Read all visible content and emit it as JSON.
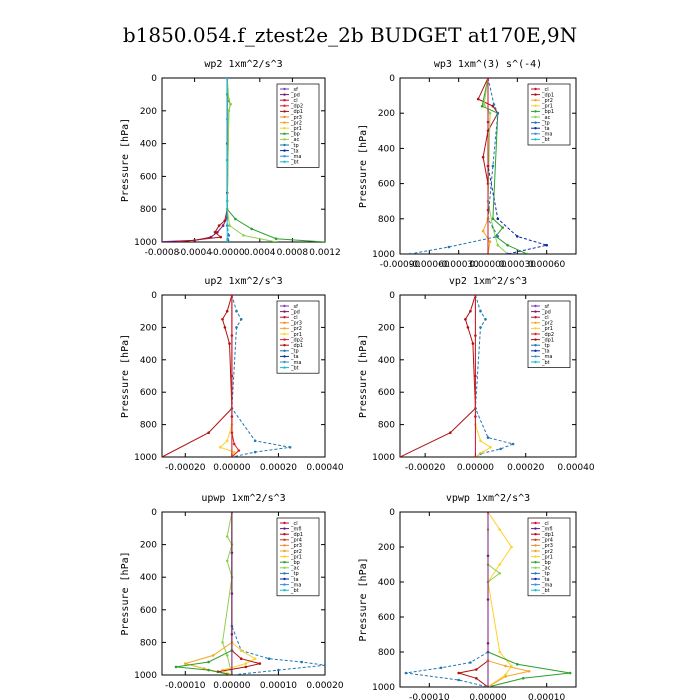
{
  "title": "b1850.054.f_ztest2e_2b  BUDGET at170E,9N",
  "colors": {
    "_sf": "#7b3fbf",
    "_pd": "#7a1a7a",
    "_cl": "#c8102e",
    "_dp2": "#e02020",
    "_dp1": "#b01010",
    "_pr3": "#f28c28",
    "_pr2": "#f5a623",
    "_pr1": "#ffd02a",
    "_pr4": "#d43a1a",
    "_mfl": "#5a1c8c",
    "_bp": "#2ca02c",
    "_bp1": "#2ca02c",
    "_ac": "#8fd14f",
    "_tp": "#1f77b4",
    "_ta": "#0a2aa8",
    "_ma": "#3a8fd8",
    "_bt": "#17becf"
  },
  "chart_data": [
    {
      "type": "line",
      "title": "wp2  1xm^2/s^3",
      "ylabel": "Pressure [hPa]",
      "xlim": [
        -0.0008,
        0.0012
      ],
      "ylim": [
        1000,
        0
      ],
      "xticks": [
        "-0.0008",
        "-0.0004",
        "-0.0000",
        "0.0004",
        "0.0008",
        "0.0012"
      ],
      "xtick_values": [
        -0.0008,
        -0.0004,
        0.0,
        0.0004,
        0.0008,
        0.0012
      ],
      "yticks": [
        "0",
        "200",
        "400",
        "600",
        "800",
        "1000"
      ],
      "legend": [
        "_sf",
        "_pd",
        "_cl",
        "_dp2",
        "_dp1",
        "_pr3",
        "_pr2",
        "_pr1",
        "_bp",
        "_ac",
        "_tp",
        "_ta",
        "_ma",
        "_bt"
      ],
      "series": [
        {
          "name": "_pd",
          "x": [
            0,
            0,
            0,
            0,
            -5e-05,
            -0.00012,
            -0.0002,
            -0.0004,
            -0.0009
          ],
          "y": [
            0,
            400,
            700,
            850,
            900,
            940,
            970,
            990,
            1000
          ]
        },
        {
          "name": "_dp1",
          "x": [
            0,
            0,
            0,
            -3e-05,
            -0.0001,
            -0.00015,
            -8e-05,
            -0.0006
          ],
          "y": [
            0,
            500,
            800,
            870,
            900,
            940,
            970,
            1000
          ]
        },
        {
          "name": "_bp",
          "x": [
            0,
            0,
            2e-05,
            4e-05,
            2e-05,
            0,
            0.0001,
            0.0003,
            0.0006,
            0.0012
          ],
          "y": [
            0,
            100,
            140,
            160,
            200,
            800,
            860,
            920,
            980,
            1000
          ]
        },
        {
          "name": "_ac",
          "x": [
            0,
            2e-05,
            4e-05,
            2e-05,
            0,
            3e-05,
            0.0002,
            0.0006
          ],
          "y": [
            0,
            130,
            160,
            200,
            800,
            900,
            960,
            1000
          ]
        },
        {
          "name": "_tp",
          "x": [
            0,
            0,
            0,
            2e-05,
            1e-05,
            0
          ],
          "y": [
            0,
            500,
            900,
            960,
            990,
            1000
          ]
        },
        {
          "name": "_bt",
          "x": [
            0,
            0,
            0,
            0,
            0
          ],
          "y": [
            0,
            250,
            500,
            750,
            1000
          ]
        }
      ]
    },
    {
      "type": "line",
      "title": "wp3  1xm^(3) s^(-4)",
      "ylabel": "Pressure [hPa]",
      "xlim": [
        -0.0009,
        0.0009
      ],
      "ylim": [
        1000,
        0
      ],
      "xticks": [
        "-0.00090",
        "-0.00060",
        "-0.00030",
        "0.00000",
        "0.00030",
        "0.00060"
      ],
      "xtick_values": [
        -0.0009,
        -0.0006,
        -0.0003,
        0.0,
        0.0003,
        0.0006
      ],
      "yticks": [
        "0",
        "200",
        "400",
        "600",
        "800",
        "1000"
      ],
      "legend": [
        "_cl",
        "_dp1",
        "_pr2",
        "_pr1",
        "_bp1",
        "_ac",
        "_tp",
        "_ta",
        "_ma",
        "_bt"
      ],
      "series": [
        {
          "name": "_dp1",
          "x": [
            0,
            -0.0001,
            5e-05,
            0.0001,
            0,
            -5e-05,
            0,
            0
          ],
          "y": [
            0,
            120,
            160,
            200,
            300,
            450,
            600,
            1000
          ]
        },
        {
          "name": "_bp1",
          "x": [
            0,
            -6e-05,
            0.0001,
            5e-05,
            0.00015,
            8e-05,
            0.0002,
            0.0004
          ],
          "y": [
            0,
            160,
            200,
            800,
            850,
            900,
            950,
            1000
          ]
        },
        {
          "name": "_ac",
          "x": [
            0,
            -4e-05,
            2e-05,
            0,
            5e-05,
            0.0001,
            0.0002
          ],
          "y": [
            0,
            150,
            200,
            700,
            850,
            950,
            1000
          ]
        },
        {
          "name": "_tp",
          "x": [
            0,
            6e-05,
            0.0001,
            5e-05,
            0,
            0.0001,
            -0.0004,
            -0.0008
          ],
          "y": [
            0,
            150,
            200,
            500,
            800,
            900,
            960,
            1000
          ]
        },
        {
          "name": "_ta",
          "x": [
            0,
            0,
            0.0001,
            0.0003,
            0.0006,
            0.0002
          ],
          "y": [
            0,
            500,
            800,
            900,
            950,
            1000
          ]
        },
        {
          "name": "_pr2",
          "x": [
            0,
            0,
            -5e-05,
            2e-05,
            0
          ],
          "y": [
            0,
            800,
            870,
            930,
            1000
          ]
        },
        {
          "name": "_cl",
          "x": [
            0,
            0,
            0,
            0,
            0
          ],
          "y": [
            0,
            250,
            500,
            750,
            1000
          ]
        }
      ]
    },
    {
      "type": "line",
      "title": "up2  1xm^2/s^3",
      "ylabel": "Pressure [hPa]",
      "xlim": [
        -0.0003,
        0.0004
      ],
      "ylim": [
        1000,
        0
      ],
      "xticks": [
        "-0.00020",
        "0.00000",
        "0.00020",
        "0.00040"
      ],
      "xtick_values": [
        -0.0002,
        0.0,
        0.0002,
        0.0004
      ],
      "yticks": [
        "0",
        "200",
        "400",
        "600",
        "800",
        "1000"
      ],
      "legend": [
        "_sf",
        "_pd",
        "_cl",
        "_pr3",
        "_pr2",
        "_pr1",
        "_dp2",
        "_dp1",
        "_tp",
        "_ta",
        "_ma",
        "_bt"
      ],
      "series": [
        {
          "name": "_dp1",
          "x": [
            0,
            -2e-05,
            -4e-05,
            -3e-05,
            -1e-05,
            0,
            -0.0001,
            -0.0003
          ],
          "y": [
            0,
            100,
            150,
            200,
            300,
            700,
            850,
            1000
          ]
        },
        {
          "name": "_tp",
          "x": [
            0,
            2e-05,
            4e-05,
            2e-05,
            0,
            0.0001,
            0.00025,
            0.0001,
            0
          ],
          "y": [
            0,
            100,
            150,
            200,
            700,
            900,
            940,
            970,
            1000
          ]
        },
        {
          "name": "_pr1",
          "x": [
            0,
            0,
            -2e-05,
            -5e-05,
            1e-05,
            0
          ],
          "y": [
            0,
            800,
            900,
            940,
            970,
            1000
          ]
        },
        {
          "name": "_dp2",
          "x": [
            0,
            0,
            1e-05,
            3e-05,
            0
          ],
          "y": [
            0,
            850,
            920,
            960,
            1000
          ]
        },
        {
          "name": "_cl",
          "x": [
            0,
            0,
            0,
            0,
            0
          ],
          "y": [
            0,
            250,
            500,
            750,
            1000
          ]
        }
      ]
    },
    {
      "type": "line",
      "title": "vp2  1xm^2/s^3",
      "ylabel": "Pressure [hPa]",
      "xlim": [
        -0.0003,
        0.0004
      ],
      "ylim": [
        1000,
        0
      ],
      "xticks": [
        "-0.00020",
        "0.00000",
        "0.00020",
        "0.00040"
      ],
      "xtick_values": [
        -0.0002,
        0.0,
        0.0002,
        0.0004
      ],
      "yticks": [
        "0",
        "200",
        "400",
        "600",
        "800",
        "1000"
      ],
      "legend": [
        "_sf",
        "_pd",
        "_cl",
        "_pr2",
        "_pr1",
        "_dp2",
        "_dp1",
        "_tp",
        "_ta",
        "_ma",
        "_bt"
      ],
      "series": [
        {
          "name": "_dp1",
          "x": [
            0,
            -2e-05,
            -4e-05,
            -3e-05,
            -1e-05,
            0,
            -0.0001,
            -0.0003
          ],
          "y": [
            0,
            100,
            150,
            200,
            300,
            700,
            850,
            1000
          ]
        },
        {
          "name": "_tp",
          "x": [
            0,
            2e-05,
            4e-05,
            2e-05,
            0,
            5e-05,
            0.00015,
            0.0001,
            2e-05,
            0
          ],
          "y": [
            0,
            100,
            150,
            200,
            700,
            880,
            920,
            950,
            980,
            1000
          ]
        },
        {
          "name": "_pr1",
          "x": [
            0,
            0,
            2e-05,
            6e-05,
            3e-05,
            0
          ],
          "y": [
            0,
            800,
            900,
            940,
            970,
            1000
          ]
        },
        {
          "name": "_cl",
          "x": [
            0,
            0,
            0,
            0,
            0
          ],
          "y": [
            0,
            250,
            500,
            750,
            1000
          ]
        }
      ]
    },
    {
      "type": "line",
      "title": "upwp  1xm^2/s^3",
      "ylabel": "Pressure [hPa]",
      "xlim": [
        -0.00015,
        0.0002
      ],
      "ylim": [
        1000,
        0
      ],
      "xticks": [
        "-0.00010",
        "0.00000",
        "0.00010",
        "0.00020"
      ],
      "xtick_values": [
        -0.0001,
        0.0,
        0.0001,
        0.0002
      ],
      "yticks": [
        "0",
        "200",
        "400",
        "600",
        "800",
        "1000"
      ],
      "legend": [
        "_cl",
        "_mfl",
        "_dp1",
        "_pr4",
        "_pr3",
        "_pr2",
        "_pr1",
        "_bp",
        "_ac",
        "_tp",
        "_ta",
        "_ma",
        "_bt"
      ],
      "series": [
        {
          "name": "_ac",
          "x": [
            0,
            -1e-05,
            0,
            -1e-05,
            0,
            -2e-05,
            -1e-05,
            0
          ],
          "y": [
            0,
            150,
            200,
            300,
            400,
            800,
            880,
            1000
          ]
        },
        {
          "name": "_tp",
          "x": [
            0,
            0,
            2e-05,
            8e-05,
            0.00015,
            0.0002,
            0.0001,
            0
          ],
          "y": [
            0,
            700,
            850,
            900,
            920,
            940,
            970,
            1000
          ]
        },
        {
          "name": "_pr2",
          "x": [
            0,
            0,
            -4e-05,
            -0.0001,
            -6e-05,
            0
          ],
          "y": [
            0,
            800,
            880,
            930,
            960,
            1000
          ]
        },
        {
          "name": "_pr1",
          "x": [
            0,
            0,
            2e-05,
            5e-05,
            3e-05,
            -2e-05,
            0
          ],
          "y": [
            0,
            800,
            850,
            900,
            930,
            970,
            1000
          ]
        },
        {
          "name": "_dp1",
          "x": [
            0,
            0,
            2e-05,
            6e-05,
            3e-05,
            -3e-05,
            0
          ],
          "y": [
            0,
            850,
            900,
            930,
            950,
            980,
            1000
          ]
        },
        {
          "name": "_bp",
          "x": [
            0,
            0,
            -5e-05,
            -0.00012,
            -5e-05,
            0
          ],
          "y": [
            0,
            850,
            920,
            950,
            970,
            1000
          ]
        },
        {
          "name": "_pd",
          "x": [
            0,
            0,
            0,
            0,
            0
          ],
          "y": [
            0,
            250,
            500,
            750,
            1000
          ]
        }
      ]
    },
    {
      "type": "line",
      "title": "vpwp  1xm^2/s^3",
      "ylabel": "Pressure [hPa]",
      "xlim": [
        -0.00015,
        0.00015
      ],
      "ylim": [
        1000,
        0
      ],
      "xticks": [
        "-0.00010",
        "0.00000",
        "0.00010"
      ],
      "xtick_values": [
        -0.0001,
        0.0,
        0.0001
      ],
      "yticks": [
        "0",
        "200",
        "400",
        "600",
        "800",
        "1000"
      ],
      "legend": [
        "_cl",
        "_mfl",
        "_dp1",
        "_pr4",
        "_pr3",
        "_pr2",
        "_pr1",
        "_bp",
        "_ac",
        "_tp",
        "_ta",
        "_ma",
        "_bt"
      ],
      "series": [
        {
          "name": "_pr1",
          "x": [
            0,
            2e-05,
            4e-05,
            2e-05,
            0,
            2e-05,
            4e-05,
            3e-05,
            0
          ],
          "y": [
            0,
            100,
            200,
            300,
            400,
            800,
            880,
            930,
            1000
          ]
        },
        {
          "name": "_ac",
          "x": [
            0,
            0,
            0,
            2e-05,
            0,
            0
          ],
          "y": [
            0,
            100,
            300,
            350,
            400,
            1000
          ]
        },
        {
          "name": "_bp",
          "x": [
            0,
            0,
            5e-05,
            0.00014,
            6e-05,
            0
          ],
          "y": [
            0,
            800,
            870,
            920,
            950,
            1000
          ]
        },
        {
          "name": "_tp",
          "x": [
            0,
            0,
            -3e-05,
            -8e-05,
            -0.00014,
            -5e-05,
            0
          ],
          "y": [
            0,
            800,
            860,
            890,
            920,
            960,
            1000
          ]
        },
        {
          "name": "_dp1",
          "x": [
            0,
            0,
            -2e-05,
            -5e-05,
            -2e-05,
            0
          ],
          "y": [
            0,
            850,
            900,
            920,
            950,
            1000
          ]
        },
        {
          "name": "_pr2",
          "x": [
            0,
            0,
            3e-05,
            7e-05,
            3e-05,
            0
          ],
          "y": [
            0,
            850,
            880,
            910,
            940,
            1000
          ]
        },
        {
          "name": "_pd",
          "x": [
            0,
            0,
            0,
            0,
            0
          ],
          "y": [
            0,
            250,
            500,
            750,
            1000
          ]
        }
      ]
    }
  ]
}
